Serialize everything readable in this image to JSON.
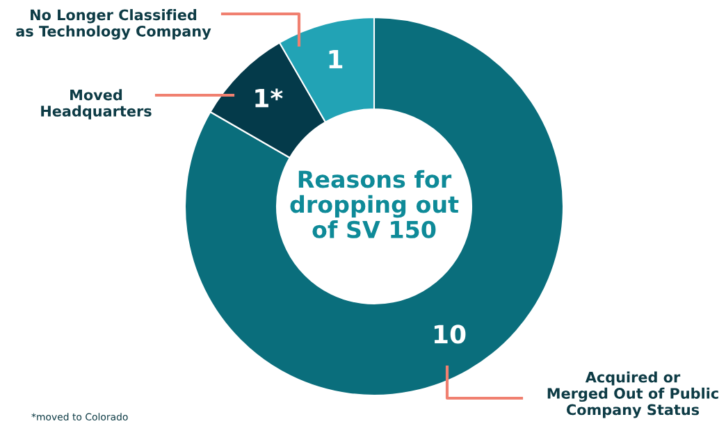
{
  "chart_data": {
    "type": "donut",
    "title": "Reasons for\ndropping out\nof SV 150",
    "categories": [
      "Acquired or\nMerged Out of Public\nCompany Status",
      "Moved\nHeadquarters",
      "No Longer Classified\nas Technology Company"
    ],
    "values": [
      10,
      1,
      1
    ],
    "colors": [
      "#0a6e7c",
      "#043a4a",
      "#22a3b5"
    ],
    "value_labels": [
      "10",
      "1*",
      "1"
    ],
    "annotations": [
      "*moved to Colorado"
    ]
  }
}
